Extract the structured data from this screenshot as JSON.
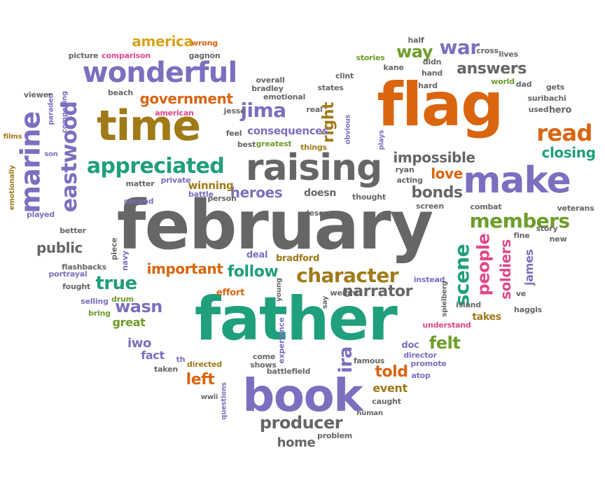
{
  "palette": {
    "gray": "#666666",
    "orange": "#d9650f",
    "teal": "#1f9f7b",
    "purple": "#7b6fbf",
    "brown": "#a07a17",
    "green": "#6e9d2a",
    "pink": "#e0478a",
    "gold": "#d8a21c"
  },
  "words": [
    {
      "text": "february",
      "color": "#666666"
    },
    {
      "text": "father",
      "color": "#1f9f7b"
    },
    {
      "text": "flag",
      "color": "#d9650f"
    },
    {
      "text": "book",
      "color": "#7b6fbf"
    },
    {
      "text": "raising",
      "color": "#666666"
    },
    {
      "text": "time",
      "color": "#a07a17"
    },
    {
      "text": "make",
      "color": "#7b6fbf"
    },
    {
      "text": "wonderful",
      "color": "#7b6fbf"
    },
    {
      "text": "marine",
      "color": "#7b6fbf"
    },
    {
      "text": "eastwood",
      "color": "#7b6fbf"
    },
    {
      "text": "appreciated",
      "color": "#1f9f7b"
    },
    {
      "text": "character",
      "color": "#a07a17"
    },
    {
      "text": "members",
      "color": "#6e9d2a"
    },
    {
      "text": "read",
      "color": "#d9650f"
    },
    {
      "text": "scene",
      "color": "#1f9f7b"
    },
    {
      "text": "people",
      "color": "#e0478a"
    },
    {
      "text": "producer",
      "color": "#666666"
    },
    {
      "text": "government",
      "color": "#d9650f"
    },
    {
      "text": "jima",
      "color": "#7b6fbf"
    },
    {
      "text": "america",
      "color": "#d8a21c"
    },
    {
      "text": "war",
      "color": "#7b6fbf"
    },
    {
      "text": "way",
      "color": "#6e9d2a"
    },
    {
      "text": "answers",
      "color": "#666666"
    },
    {
      "text": "impossible",
      "color": "#666666"
    },
    {
      "text": "bonds",
      "color": "#666666"
    },
    {
      "text": "love",
      "color": "#d9650f"
    },
    {
      "text": "closing",
      "color": "#1f9f7b"
    },
    {
      "text": "heroes",
      "color": "#7b6fbf"
    },
    {
      "text": "important",
      "color": "#d9650f"
    },
    {
      "text": "follow",
      "color": "#1f9f7b"
    },
    {
      "text": "true",
      "color": "#1f9f7b"
    },
    {
      "text": "wasn",
      "color": "#7b6fbf"
    },
    {
      "text": "narrator",
      "color": "#666666"
    },
    {
      "text": "felt",
      "color": "#6e9d2a"
    },
    {
      "text": "told",
      "color": "#d9650f"
    },
    {
      "text": "ira",
      "color": "#7b6fbf"
    },
    {
      "text": "left",
      "color": "#d9650f"
    },
    {
      "text": "soldiers",
      "color": "#e0478a"
    },
    {
      "text": "james",
      "color": "#7b6fbf"
    },
    {
      "text": "public",
      "color": "#666666"
    },
    {
      "text": "right",
      "color": "#a07a17"
    },
    {
      "text": "consequences",
      "color": "#7b6fbf"
    },
    {
      "text": "home",
      "color": "#666666"
    },
    {
      "text": "iwo",
      "color": "#7b6fbf"
    },
    {
      "text": "fact",
      "color": "#7b6fbf"
    },
    {
      "text": "great",
      "color": "#6e9d2a"
    },
    {
      "text": "event",
      "color": "#a07a17"
    },
    {
      "text": "takes",
      "color": "#a07a17"
    },
    {
      "text": "doesn",
      "color": "#666666"
    },
    {
      "text": "winning",
      "color": "#a07a17"
    },
    {
      "text": "deal",
      "color": "#7b6fbf"
    },
    {
      "text": "bradford",
      "color": "#a07a17"
    },
    {
      "text": "effort",
      "color": "#d9650f"
    },
    {
      "text": "story",
      "color": "#666666"
    },
    {
      "text": "new",
      "color": "#666666"
    },
    {
      "text": "fine",
      "color": "#666666"
    },
    {
      "text": "hero",
      "color": "#666666"
    },
    {
      "text": "ve",
      "color": "#666666"
    },
    {
      "text": "island",
      "color": "#666666"
    },
    {
      "text": "instead",
      "color": "#7b6fbf"
    },
    {
      "text": "understand",
      "color": "#e0478a"
    },
    {
      "text": "doc",
      "color": "#7b6fbf"
    },
    {
      "text": "director",
      "color": "#7b6fbf"
    },
    {
      "text": "promote",
      "color": "#7b6fbf"
    },
    {
      "text": "atop",
      "color": "#7b6fbf"
    },
    {
      "text": "caught",
      "color": "#666666"
    },
    {
      "text": "human",
      "color": "#666666"
    },
    {
      "text": "problem",
      "color": "#666666"
    },
    {
      "text": "famous",
      "color": "#666666"
    },
    {
      "text": "battlefield",
      "color": "#666666"
    },
    {
      "text": "shows",
      "color": "#666666"
    },
    {
      "text": "come",
      "color": "#666666"
    },
    {
      "text": "experience",
      "color": "#7b6fbf"
    },
    {
      "text": "directed",
      "color": "#a07a17"
    },
    {
      "text": "th",
      "color": "#7b6fbf"
    },
    {
      "text": "taken",
      "color": "#666666"
    },
    {
      "text": "wwii",
      "color": "#666666"
    },
    {
      "text": "questions",
      "color": "#7b6fbf"
    },
    {
      "text": "selling",
      "color": "#7b6fbf"
    },
    {
      "text": "bring",
      "color": "#6e9d2a"
    },
    {
      "text": "fought",
      "color": "#666666"
    },
    {
      "text": "portrayal",
      "color": "#7b6fbf"
    },
    {
      "text": "flashbacks",
      "color": "#666666"
    },
    {
      "text": "navy",
      "color": "#7b6fbf"
    },
    {
      "text": "drum",
      "color": "#6e9d2a"
    },
    {
      "text": "piece",
      "color": "#666666"
    },
    {
      "text": "played",
      "color": "#7b6fbf"
    },
    {
      "text": "better",
      "color": "#666666"
    },
    {
      "text": "second",
      "color": "#7b6fbf"
    },
    {
      "text": "matter",
      "color": "#666666"
    },
    {
      "text": "private",
      "color": "#7b6fbf"
    },
    {
      "text": "battle",
      "color": "#7b6fbf"
    },
    {
      "text": "person",
      "color": "#666666"
    },
    {
      "text": "emotionally",
      "color": "#a07a17"
    },
    {
      "text": "films",
      "color": "#a07a17"
    },
    {
      "text": "son",
      "color": "#7b6fbf"
    },
    {
      "text": "paraded",
      "color": "#7b6fbf"
    },
    {
      "text": "compelling",
      "color": "#7b6fbf"
    },
    {
      "text": "viewer",
      "color": "#666666"
    },
    {
      "text": "beach",
      "color": "#666666"
    },
    {
      "text": "american",
      "color": "#e0478a"
    },
    {
      "text": "picture",
      "color": "#666666"
    },
    {
      "text": "comparison",
      "color": "#e0478a"
    },
    {
      "text": "wrong",
      "color": "#d9650f"
    },
    {
      "text": "gagnon",
      "color": "#666666"
    },
    {
      "text": "overall",
      "color": "#666666"
    },
    {
      "text": "bradley",
      "color": "#666666"
    },
    {
      "text": "emotional",
      "color": "#666666"
    },
    {
      "text": "jesse",
      "color": "#666666"
    },
    {
      "text": "feel",
      "color": "#666666"
    },
    {
      "text": "best",
      "color": "#666666"
    },
    {
      "text": "greatest",
      "color": "#6e9d2a"
    },
    {
      "text": "real",
      "color": "#666666"
    },
    {
      "text": "things",
      "color": "#a07a17"
    },
    {
      "text": "obvious",
      "color": "#7b6fbf"
    },
    {
      "text": "plays",
      "color": "#7b6fbf"
    },
    {
      "text": "states",
      "color": "#666666"
    },
    {
      "text": "clint",
      "color": "#666666"
    },
    {
      "text": "stories",
      "color": "#6e9d2a"
    },
    {
      "text": "kane",
      "color": "#666666"
    },
    {
      "text": "half",
      "color": "#666666"
    },
    {
      "text": "didn",
      "color": "#666666"
    },
    {
      "text": "hand",
      "color": "#666666"
    },
    {
      "text": "hard",
      "color": "#666666"
    },
    {
      "text": "cross",
      "color": "#666666"
    },
    {
      "text": "lives",
      "color": "#666666"
    },
    {
      "text": "world",
      "color": "#6e9d2a"
    },
    {
      "text": "dad",
      "color": "#666666"
    },
    {
      "text": "gets",
      "color": "#666666"
    },
    {
      "text": "suribachi",
      "color": "#666666"
    },
    {
      "text": "used",
      "color": "#666666"
    },
    {
      "text": "ryan",
      "color": "#666666"
    },
    {
      "text": "acting",
      "color": "#666666"
    },
    {
      "text": "thought",
      "color": "#666666"
    },
    {
      "text": "screen",
      "color": "#666666"
    },
    {
      "text": "combat",
      "color": "#666666"
    },
    {
      "text": "veterans",
      "color": "#666666"
    },
    {
      "text": "deserves",
      "color": "#666666"
    },
    {
      "text": "spielberg",
      "color": "#666666"
    },
    {
      "text": "say",
      "color": "#666666"
    },
    {
      "text": "weight",
      "color": "#666666"
    },
    {
      "text": "young",
      "color": "#666666"
    },
    {
      "text": "haggis",
      "color": "#666666"
    }
  ]
}
